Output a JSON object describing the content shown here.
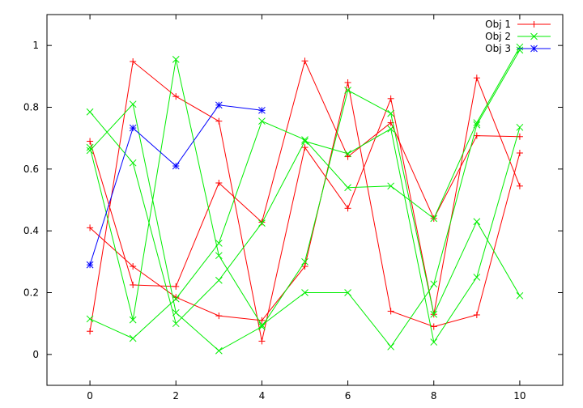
{
  "chart_data": {
    "type": "line",
    "xlim": [
      -1,
      11
    ],
    "ylim": [
      -0.1,
      1.1
    ],
    "x_ticks": [
      0,
      2,
      4,
      6,
      8,
      10
    ],
    "x_tick_labels": [
      "0",
      "2",
      "4",
      "6",
      "8",
      "10"
    ],
    "y_ticks": [
      0,
      0.2,
      0.4,
      0.6,
      0.8,
      1
    ],
    "y_tick_labels": [
      "0",
      "0.2",
      "0.4",
      "0.6",
      "0.8",
      "1"
    ],
    "grid": false,
    "legend_position": "top-right",
    "series": [
      {
        "name": "Obj 1",
        "color": "#ff0000",
        "marker": "plus",
        "lines": [
          [
            [
              0,
              0.69
            ],
            [
              1,
              0.225
            ],
            [
              2,
              0.22
            ],
            [
              3,
              0.555
            ],
            [
              4,
              0.428
            ],
            [
              5,
              0.95
            ],
            [
              6,
              0.64
            ],
            [
              7,
              0.75
            ],
            [
              8,
              0.44
            ],
            [
              9,
              0.708
            ],
            [
              10,
              0.705
            ]
          ],
          [
            [
              0,
              0.41
            ],
            [
              1,
              0.285
            ],
            [
              2,
              0.185
            ],
            [
              3,
              0.125
            ],
            [
              4,
              0.11
            ],
            [
              5,
              0.285
            ],
            [
              6,
              0.88
            ],
            [
              7,
              0.14
            ],
            [
              8,
              0.09
            ],
            [
              9,
              0.128
            ],
            [
              10,
              0.652
            ]
          ],
          [
            [
              0,
              0.075
            ],
            [
              1,
              0.948
            ],
            [
              2,
              0.835
            ],
            [
              3,
              0.755
            ],
            [
              4,
              0.043
            ],
            [
              5,
              0.67
            ],
            [
              6,
              0.473
            ],
            [
              7,
              0.828
            ],
            [
              8,
              0.13
            ],
            [
              9,
              0.895
            ],
            [
              10,
              0.545
            ]
          ]
        ]
      },
      {
        "name": "Obj 2",
        "color": "#00ee00",
        "marker": "cross",
        "lines": [
          [
            [
              0,
              0.785
            ],
            [
              1,
              0.62
            ],
            [
              2,
              0.1
            ],
            [
              3,
              0.24
            ],
            [
              4,
              0.425
            ],
            [
              5,
              0.69
            ],
            [
              6,
              0.65
            ],
            [
              7,
              0.73
            ],
            [
              8,
              0.04
            ],
            [
              9,
              0.25
            ],
            [
              10,
              0.735
            ]
          ],
          [
            [
              0,
              0.66
            ],
            [
              1,
              0.81
            ],
            [
              2,
              0.135
            ],
            [
              3,
              0.012
            ],
            [
              4,
              0.09
            ],
            [
              5,
              0.3
            ],
            [
              6,
              0.855
            ],
            [
              7,
              0.78
            ],
            [
              8,
              0.13
            ],
            [
              9,
              0.43
            ],
            [
              10,
              0.19
            ]
          ],
          [
            [
              0,
              0.67
            ],
            [
              1,
              0.112
            ],
            [
              2,
              0.955
            ],
            [
              3,
              0.32
            ],
            [
              4,
              0.095
            ],
            [
              5,
              0.2
            ],
            [
              6,
              0.2
            ],
            [
              7,
              0.025
            ],
            [
              8,
              0.228
            ],
            [
              9,
              0.743
            ],
            [
              10,
              0.985
            ]
          ],
          [
            [
              0,
              0.115
            ],
            [
              1,
              0.052
            ],
            [
              2,
              0.18
            ],
            [
              3,
              0.36
            ],
            [
              4,
              0.755
            ],
            [
              5,
              0.695
            ],
            [
              6,
              0.54
            ],
            [
              7,
              0.545
            ],
            [
              8,
              0.44
            ],
            [
              9,
              0.75
            ],
            [
              10,
              0.995
            ]
          ]
        ]
      },
      {
        "name": "Obj 3",
        "color": "#0000ff",
        "marker": "star",
        "lines": [
          [
            [
              0,
              0.29
            ],
            [
              1,
              0.733
            ],
            [
              2,
              0.61
            ],
            [
              3,
              0.807
            ],
            [
              4,
              0.79
            ]
          ]
        ]
      }
    ]
  }
}
